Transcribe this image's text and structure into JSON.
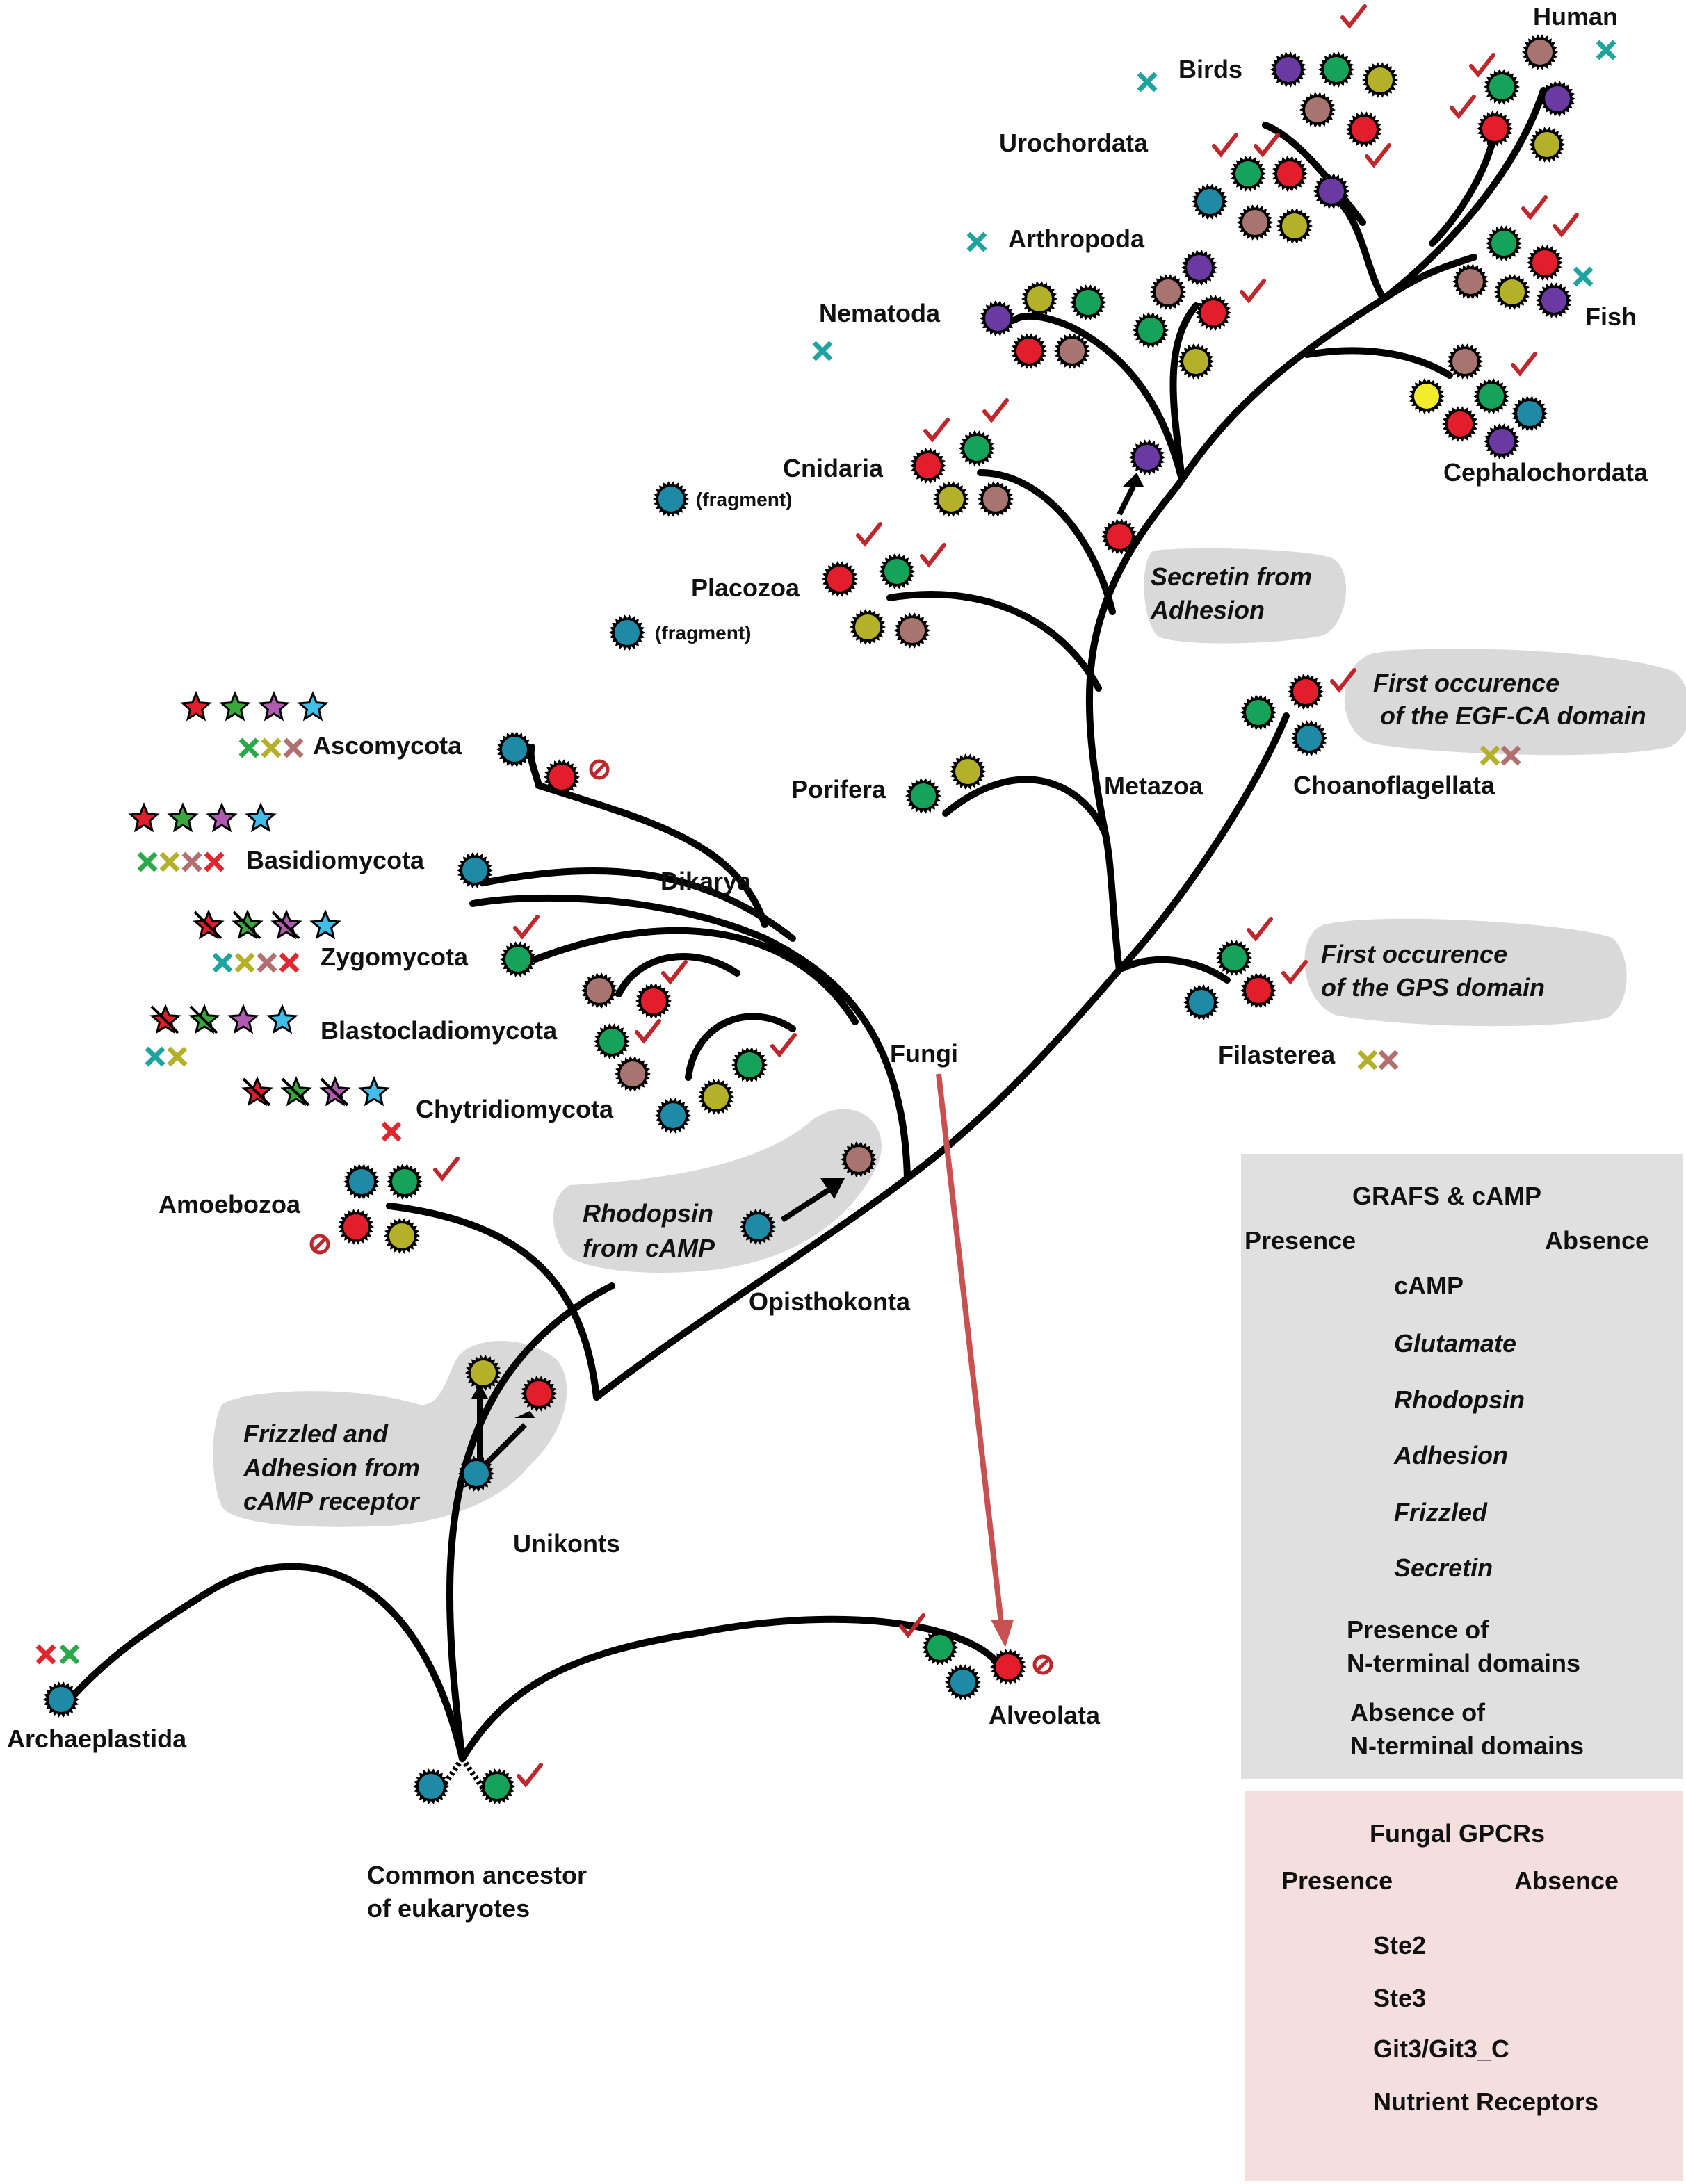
{
  "colors": {
    "cAMP": "#1f8aa6",
    "Glutamate": "#17a25a",
    "Rhodopsin": "#a8746f",
    "Adhesion": "#e31e2c",
    "Frizzled": "#b5b02a",
    "Secretin": "#6a3aa2",
    "Yellow": "#f3ec2a",
    "Ste2": "#e31e2c",
    "Ste3": "#37a93c",
    "Git3": "#b05ab0",
    "Nutrient": "#3ebee8",
    "check": "#c0272d",
    "abs_cAMP": "#1fa39f",
    "abs_Glutamate": "#2aa84a",
    "abs_Rhodopsin": "#b07070",
    "abs_Adhesion": "#e0262e",
    "abs_Frizzled": "#b5b02a",
    "arrow_red": "#c95050",
    "bubble": "#d9d9d9",
    "legend_grey": "#e0e0e0",
    "legend_pink": "#f5dede"
  },
  "taxa": {
    "human": "Human",
    "birds": "Birds",
    "urochordata": "Urochordata",
    "arthropoda": "Arthropoda",
    "nematoda": "Nematoda",
    "fish": "Fish",
    "cephalochordata": "Cephalochordata",
    "cnidaria": "Cnidaria",
    "placozoa": "Placozoa",
    "porifera": "Porifera",
    "metazoa": "Metazoa",
    "choanoflagellata": "Choanoflagellata",
    "filasterea": "Filasterea",
    "ascomycota": "Ascomycota",
    "basidiomycota": "Basidiomycota",
    "dikarya": "Dikarya",
    "zygomycota": "Zygomycota",
    "blastocladiomycota": "Blastocladiomycota",
    "chytridiomycota": "Chytridiomycota",
    "fungi": "Fungi",
    "amoebozoa": "Amoebozoa",
    "opisthokonta": "Opisthokonta",
    "unikonts": "Unikonts",
    "archaeplastida": "Archaeplastida",
    "alveolata": "Alveolata",
    "ancestor_line1": "Common ancestor",
    "ancestor_line2": "of eukaryotes",
    "fragment": "(fragment)"
  },
  "annotations": {
    "secretin_l1": "Secretin from",
    "secretin_l2": "Adhesion",
    "egf_l1": "First occurence",
    "egf_l2": "of the EGF-CA domain",
    "gps_l1": "First occurence",
    "gps_l2": "of the GPS domain",
    "rhodopsin_l1": "Rhodopsin",
    "rhodopsin_l2": "from cAMP",
    "frizzled_l1": "Frizzled and",
    "frizzled_l2": "Adhesion from",
    "frizzled_l3": "cAMP receptor"
  },
  "legend_grafs": {
    "title": "GRAFS & cAMP",
    "presence": "Presence",
    "absence": "Absence",
    "items": [
      "cAMP",
      "Glutamate",
      "Rhodopsin",
      "Adhesion",
      "Frizzled",
      "Secretin"
    ],
    "nterm_presence_l1": "Presence of",
    "nterm_presence_l2": "N-terminal domains",
    "nterm_absence_l1": "Absence of",
    "nterm_absence_l2": "N-terminal domains"
  },
  "legend_fungal": {
    "title": "Fungal GPCRs",
    "presence": "Presence",
    "absence": "Absence",
    "items": [
      "Ste2",
      "Ste3",
      "Git3/Git3_C",
      "Nutrient Receptors"
    ]
  }
}
